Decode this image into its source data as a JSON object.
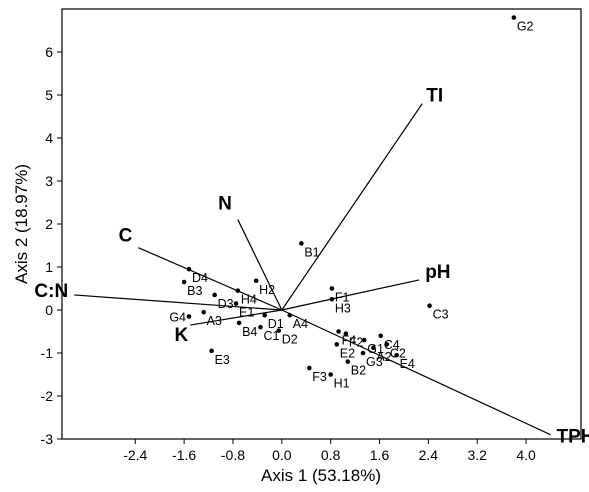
{
  "chart_data": {
    "type": "scatter",
    "subtype": "biplot",
    "title": "",
    "xlabel": "Axis 1 (53.18%)",
    "ylabel": "Axis 2 (18.97%)",
    "xlim": [
      -3.6,
      4.9
    ],
    "ylim": [
      -3,
      7
    ],
    "xticks": [
      -2.4,
      -1.6,
      -0.8,
      0.0,
      0.8,
      1.6,
      2.4,
      3.2,
      4.0
    ],
    "xtick_labels": [
      "-2.4",
      "-1.6",
      "-0.8",
      "0.0",
      "0.8",
      "1.6",
      "2.4",
      "3.2",
      "4.0"
    ],
    "yticks": [
      -3,
      -2,
      -1,
      0,
      1,
      2,
      3,
      4,
      5,
      6
    ],
    "ytick_labels": [
      "-3",
      "-2",
      "-1",
      "0",
      "1",
      "2",
      "3",
      "4",
      "5",
      "6"
    ],
    "grid": false,
    "points": [
      {
        "label": "G2",
        "x": 3.8,
        "y": 6.8
      },
      {
        "label": "B1",
        "x": 0.32,
        "y": 1.55
      },
      {
        "label": "F1",
        "x": 0.82,
        "y": 0.5
      },
      {
        "label": "H3",
        "x": 0.82,
        "y": 0.25
      },
      {
        "label": "C3",
        "x": 2.42,
        "y": 0.1
      },
      {
        "label": "F4",
        "x": 0.93,
        "y": -0.5
      },
      {
        "label": "F2",
        "x": 1.05,
        "y": -0.55
      },
      {
        "label": "C4",
        "x": 1.62,
        "y": -0.6
      },
      {
        "label": "G1",
        "x": 1.35,
        "y": -0.7
      },
      {
        "label": "C2",
        "x": 1.72,
        "y": -0.8
      },
      {
        "label": "E2",
        "x": 0.9,
        "y": -0.8
      },
      {
        "label": "A2",
        "x": 1.5,
        "y": -0.88
      },
      {
        "label": "E4",
        "x": 1.88,
        "y": -1.05
      },
      {
        "label": "G3",
        "x": 1.33,
        "y": -1.0
      },
      {
        "label": "B2",
        "x": 1.08,
        "y": -1.2
      },
      {
        "label": "F3",
        "x": 0.45,
        "y": -1.35
      },
      {
        "label": "H1",
        "x": 0.8,
        "y": -1.5
      },
      {
        "label": "H2",
        "x": -0.42,
        "y": 0.68
      },
      {
        "label": "D4",
        "x": -1.52,
        "y": 0.95
      },
      {
        "label": "B3",
        "x": -1.6,
        "y": 0.65
      },
      {
        "label": "D3",
        "x": -1.1,
        "y": 0.35
      },
      {
        "label": "H4",
        "x": -0.72,
        "y": 0.45
      },
      {
        "label": "E1",
        "x": -0.75,
        "y": 0.15
      },
      {
        "label": "G4",
        "x": -1.52,
        "y": -0.15
      },
      {
        "label": "A3",
        "x": -1.28,
        "y": -0.05
      },
      {
        "label": "B4",
        "x": -0.7,
        "y": -0.3
      },
      {
        "label": "D1",
        "x": -0.28,
        "y": -0.12
      },
      {
        "label": "A4",
        "x": 0.13,
        "y": -0.12
      },
      {
        "label": "D2",
        "x": -0.05,
        "y": -0.48
      },
      {
        "label": "C1",
        "x": -0.35,
        "y": -0.4
      },
      {
        "label": "E3",
        "x": -1.15,
        "y": -0.95
      }
    ],
    "vectors": [
      {
        "label": "TI",
        "x": 2.3,
        "y": 4.8
      },
      {
        "label": "pH",
        "x": 2.25,
        "y": 0.7
      },
      {
        "label": "TPH",
        "x": 4.4,
        "y": -2.9
      },
      {
        "label": "N",
        "x": -0.72,
        "y": 2.1
      },
      {
        "label": "C",
        "x": -2.35,
        "y": 1.45
      },
      {
        "label": "C:N",
        "x": -3.4,
        "y": 0.35
      },
      {
        "label": "K",
        "x": -1.5,
        "y": -0.35
      }
    ]
  }
}
